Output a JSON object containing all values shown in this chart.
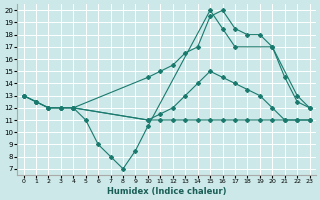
{
  "bg_color": "#cce8e8",
  "grid_color": "#ffffff",
  "line_color": "#1a7a6e",
  "xlabel": "Humidex (Indice chaleur)",
  "xlim": [
    -0.5,
    23.5
  ],
  "ylim": [
    6.5,
    20.5
  ],
  "xticks": [
    0,
    1,
    2,
    3,
    4,
    5,
    6,
    7,
    8,
    9,
    10,
    11,
    12,
    13,
    14,
    15,
    16,
    17,
    18,
    19,
    20,
    21,
    22,
    23
  ],
  "yticks": [
    7,
    8,
    9,
    10,
    11,
    12,
    13,
    14,
    15,
    16,
    17,
    18,
    19,
    20
  ],
  "lines": [
    {
      "x": [
        0,
        1,
        2,
        3,
        4,
        5,
        6,
        7,
        8,
        9,
        10,
        15,
        16,
        17,
        20,
        22,
        23
      ],
      "y": [
        13,
        12.5,
        12,
        12,
        12,
        11,
        9,
        8,
        7,
        8.5,
        10.5,
        20,
        18.5,
        17,
        17,
        13,
        12
      ]
    },
    {
      "x": [
        0,
        1,
        2,
        3,
        4,
        10,
        11,
        12,
        13,
        14,
        15,
        16,
        17,
        18,
        19,
        20,
        21,
        22,
        23
      ],
      "y": [
        13,
        12.5,
        12,
        12,
        12,
        11,
        11.5,
        12,
        13,
        14,
        15,
        14.5,
        14,
        13.5,
        13,
        12,
        11,
        11,
        11
      ]
    },
    {
      "x": [
        0,
        1,
        2,
        3,
        4,
        10,
        11,
        12,
        13,
        14,
        15,
        16,
        17,
        18,
        19,
        20,
        21,
        22,
        23
      ],
      "y": [
        13,
        12.5,
        12,
        12,
        12,
        11,
        11,
        11,
        11,
        11,
        11,
        11,
        11,
        11,
        11,
        11,
        11,
        11,
        11
      ]
    },
    {
      "x": [
        4,
        10,
        11,
        12,
        13,
        14,
        15,
        16,
        17,
        18,
        19,
        20,
        21,
        22,
        23
      ],
      "y": [
        12,
        14.5,
        15,
        15.5,
        16.5,
        17,
        19.5,
        20,
        18.5,
        18,
        18,
        17,
        14.5,
        12.5,
        12
      ]
    }
  ]
}
